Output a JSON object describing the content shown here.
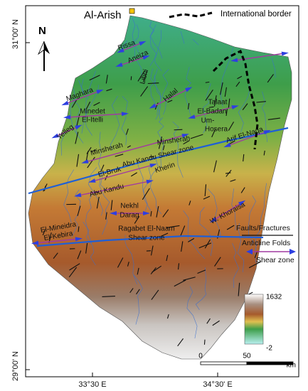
{
  "title": "Al-Arish",
  "border_legend": "International border",
  "north": "N",
  "graticule": {
    "lat_top": "31°00' N",
    "lat_bottom": "29°00' N",
    "lon_left": "33°30 E",
    "lon_right": "34°30' E"
  },
  "places": [
    "Rissa",
    "Aneiza",
    "Libni",
    "Maghara",
    "Halal",
    "Minedet",
    "El-Itelli",
    "Yelleg",
    "Talaat",
    "El-Badan",
    "Um-",
    "Hosera",
    "Arif El-Naqa",
    "Minsherah",
    "Minsherah",
    "Abu Kandu Shear zone",
    "El-Bruk",
    "Kherin",
    "Abu Kandu",
    "Nekhl",
    "Darag",
    "W. Khoraisa",
    "El-Mineidra",
    "El-Kebira",
    "Ragabet El-Naam",
    "Shear zone"
  ],
  "legend": [
    "Faults/Fractures",
    "Anticline Folds",
    "Shear zone"
  ],
  "elevation_scale": {
    "max": 1632,
    "min": -2
  },
  "scale_bar": {
    "ticks": [
      0,
      50
    ],
    "unit": "km"
  }
}
